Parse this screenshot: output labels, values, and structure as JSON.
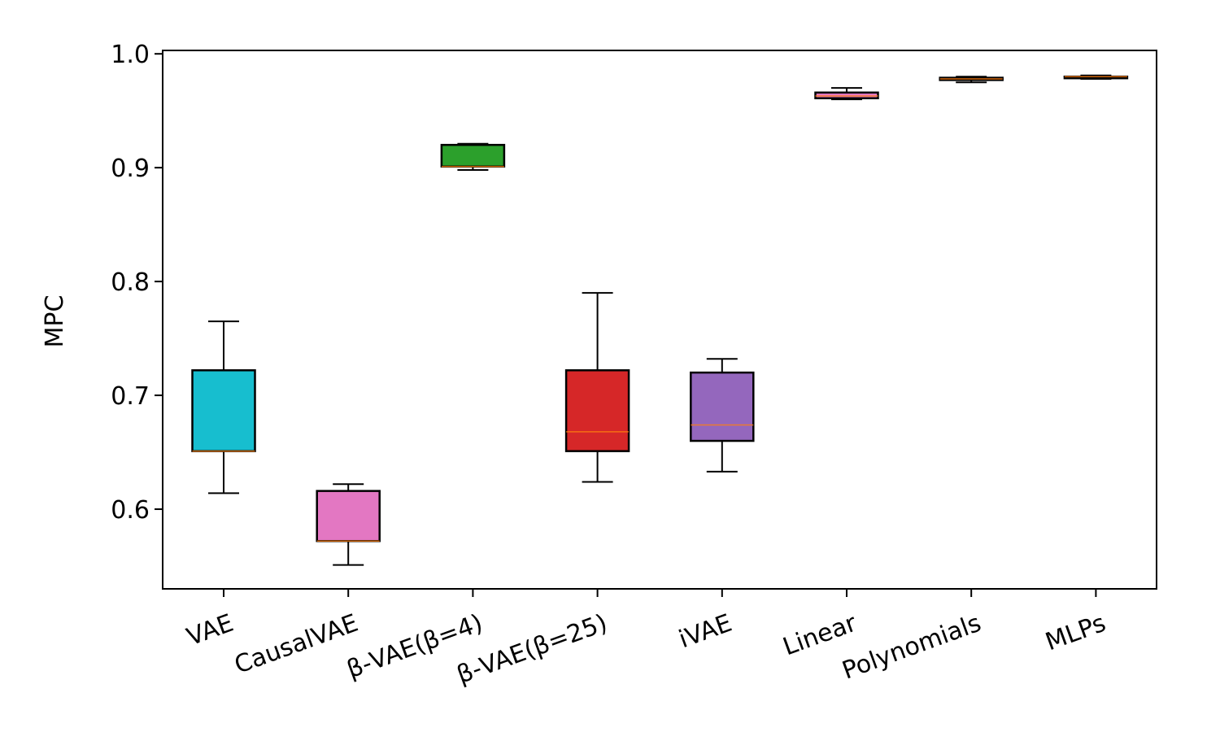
{
  "chart_data": {
    "type": "box",
    "title": "",
    "xlabel": "",
    "ylabel": "MPC",
    "ylim": [
      0.53,
      1.003
    ],
    "yticks": [
      {
        "value": 0.6,
        "label": "0.6"
      },
      {
        "value": 0.7,
        "label": "0.7"
      },
      {
        "value": 0.8,
        "label": "0.8"
      },
      {
        "value": 0.9,
        "label": "0.9"
      },
      {
        "value": 1.0,
        "label": "1.0"
      }
    ],
    "grid": false,
    "legend": "none",
    "categories": [
      "VAE",
      "CausalVAE",
      "β-VAE(β=4)",
      "β-VAE(β=25)",
      "iVAE",
      "Linear",
      "Polynomials",
      "MLPs"
    ],
    "boxes": [
      {
        "category": "VAE",
        "whisker_low": 0.614,
        "q1": 0.651,
        "median": 0.651,
        "q3": 0.722,
        "whisker_high": 0.765,
        "color": "#17becf"
      },
      {
        "category": "CausalVAE",
        "whisker_low": 0.551,
        "q1": 0.572,
        "median": 0.572,
        "q3": 0.616,
        "whisker_high": 0.622,
        "color": "#e377c2"
      },
      {
        "category": "β-VAE(β=4)",
        "whisker_low": 0.898,
        "q1": 0.901,
        "median": 0.901,
        "q3": 0.92,
        "whisker_high": 0.921,
        "color": "#2ca02c"
      },
      {
        "category": "β-VAE(β=25)",
        "whisker_low": 0.624,
        "q1": 0.651,
        "median": 0.668,
        "q3": 0.722,
        "whisker_high": 0.79,
        "color": "#d62728"
      },
      {
        "category": "iVAE",
        "whisker_low": 0.633,
        "q1": 0.66,
        "median": 0.674,
        "q3": 0.72,
        "whisker_high": 0.732,
        "color": "#9467bd"
      },
      {
        "category": "Linear",
        "whisker_low": 0.96,
        "q1": 0.961,
        "median": 0.963,
        "q3": 0.966,
        "whisker_high": 0.97,
        "color": "#e377c2"
      },
      {
        "category": "Polynomials",
        "whisker_low": 0.975,
        "q1": 0.977,
        "median": 0.978,
        "q3": 0.979,
        "whisker_high": 0.98,
        "color": "#d62728"
      },
      {
        "category": "MLPs",
        "whisker_low": 0.978,
        "q1": 0.979,
        "median": 0.98,
        "q3": 0.98,
        "whisker_high": 0.981,
        "color": "#d62728"
      }
    ]
  }
}
